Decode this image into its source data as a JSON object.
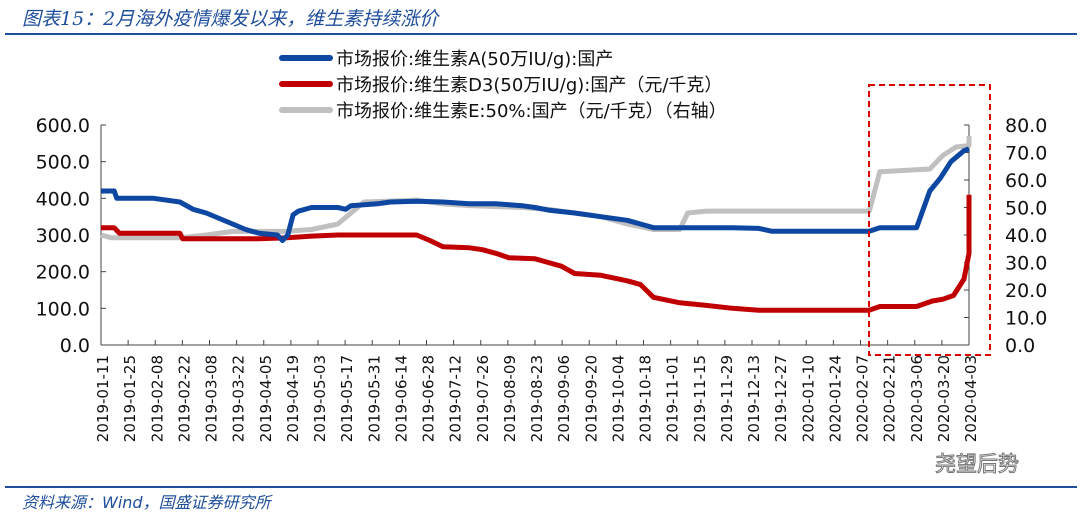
{
  "title": "图表15：2月海外疫情爆发以来，维生素持续涨价",
  "footer": "资料来源：Wind，国盛证券研究所",
  "watermark": "尧望后势",
  "chart_data": {
    "type": "line",
    "title": "图表15：2月海外疫情爆发以来，维生素持续涨价",
    "x_ticks": [
      "2019-01-11",
      "2019-01-25",
      "2019-02-08",
      "2019-02-22",
      "2019-03-08",
      "2019-03-22",
      "2019-04-05",
      "2019-04-19",
      "2019-05-03",
      "2019-05-17",
      "2019-05-31",
      "2019-06-14",
      "2019-06-28",
      "2019-07-12",
      "2019-07-26",
      "2019-08-09",
      "2019-08-23",
      "2019-09-06",
      "2019-09-20",
      "2019-10-04",
      "2019-10-18",
      "2019-11-01",
      "2019-11-15",
      "2019-11-29",
      "2019-12-13",
      "2019-12-27",
      "2020-01-10",
      "2020-01-24",
      "2020-02-07",
      "2020-02-21",
      "2020-03-06",
      "2020-03-20",
      "2020-04-03"
    ],
    "x_unit": "biweekly tick index (0 = 2019-01-11)",
    "y_left": {
      "range": [
        0,
        600
      ],
      "ticks": [
        "0.0",
        "100.0",
        "200.0",
        "300.0",
        "400.0",
        "500.0",
        "600.0"
      ]
    },
    "y_right": {
      "range": [
        0,
        80
      ],
      "ticks": [
        "0.0",
        "10.0",
        "20.0",
        "30.0",
        "40.0",
        "50.0",
        "60.0",
        "70.0",
        "80.0"
      ]
    },
    "legend_position": "top-center",
    "highlight_box": {
      "x_from": "2020-02-07",
      "x_to": "2020-04-03"
    },
    "series": [
      {
        "name": "市场报价:维生素A(50万IU/g):国产",
        "color": "#0d47a1",
        "axis": "left",
        "points": [
          [
            0,
            420
          ],
          [
            0.5,
            420
          ],
          [
            0.6,
            400
          ],
          [
            2,
            400
          ],
          [
            3,
            390
          ],
          [
            3.5,
            370
          ],
          [
            4,
            360
          ],
          [
            4.5,
            345
          ],
          [
            5,
            330
          ],
          [
            5.5,
            315
          ],
          [
            6,
            305
          ],
          [
            6.7,
            300
          ],
          [
            6.9,
            285
          ],
          [
            7.1,
            300
          ],
          [
            7.3,
            355
          ],
          [
            7.5,
            365
          ],
          [
            8,
            375
          ],
          [
            9,
            375
          ],
          [
            9.3,
            370
          ],
          [
            9.5,
            380
          ],
          [
            10.5,
            385
          ],
          [
            11,
            390
          ],
          [
            12,
            392
          ],
          [
            13,
            390
          ],
          [
            14,
            385
          ],
          [
            15,
            385
          ],
          [
            16,
            380
          ],
          [
            16.5,
            375
          ],
          [
            17,
            368
          ],
          [
            18,
            360
          ],
          [
            19,
            350
          ],
          [
            20,
            340
          ],
          [
            20.5,
            330
          ],
          [
            21,
            320
          ],
          [
            24,
            320
          ],
          [
            25,
            318
          ],
          [
            25.5,
            310
          ],
          [
            29.2,
            310
          ],
          [
            29.6,
            320
          ],
          [
            31,
            320
          ],
          [
            31.5,
            420
          ],
          [
            31.9,
            455
          ],
          [
            32.3,
            500
          ],
          [
            32.8,
            530
          ],
          [
            33.3,
            535
          ]
        ]
      },
      {
        "name": "市场报价:维生素D3(50万IU/g):国产（元/千克）",
        "color": "#c00000",
        "axis": "left",
        "points": [
          [
            0,
            320
          ],
          [
            0.5,
            320
          ],
          [
            0.7,
            305
          ],
          [
            3,
            305
          ],
          [
            3.1,
            290
          ],
          [
            4,
            290
          ],
          [
            5,
            290
          ],
          [
            6,
            290
          ],
          [
            7,
            292
          ],
          [
            8,
            297
          ],
          [
            9,
            300
          ],
          [
            12,
            300
          ],
          [
            12.5,
            285
          ],
          [
            13,
            268
          ],
          [
            14,
            265
          ],
          [
            14.5,
            260
          ],
          [
            15,
            250
          ],
          [
            15.5,
            238
          ],
          [
            16.5,
            235
          ],
          [
            17,
            225
          ],
          [
            17.5,
            215
          ],
          [
            18,
            195
          ],
          [
            19,
            190
          ],
          [
            20,
            175
          ],
          [
            20.5,
            165
          ],
          [
            21,
            130
          ],
          [
            22,
            115
          ],
          [
            23,
            108
          ],
          [
            24,
            100
          ],
          [
            25,
            95
          ],
          [
            29.2,
            95
          ],
          [
            29.6,
            105
          ],
          [
            31,
            105
          ],
          [
            31.6,
            120
          ],
          [
            32,
            125
          ],
          [
            32.4,
            135
          ],
          [
            32.8,
            180
          ],
          [
            33.0,
            250
          ],
          [
            33.1,
            280
          ],
          [
            33.2,
            395
          ],
          [
            33.4,
            410
          ]
        ]
      },
      {
        "name": "市场报价:维生素E:50%:国产（元/千克）（右轴）",
        "color": "#c0c0c0",
        "axis": "right",
        "points": [
          [
            0,
            40
          ],
          [
            0.4,
            39
          ],
          [
            3,
            39
          ],
          [
            4,
            40
          ],
          [
            5,
            41.3
          ],
          [
            7,
            41.3
          ],
          [
            8,
            42
          ],
          [
            9,
            44
          ],
          [
            9.5,
            48
          ],
          [
            10,
            52
          ],
          [
            12,
            52.7
          ],
          [
            13,
            51.3
          ],
          [
            14,
            50.7
          ],
          [
            16,
            50
          ],
          [
            17,
            49.3
          ],
          [
            18,
            48
          ],
          [
            19,
            46.7
          ],
          [
            20,
            44
          ],
          [
            21,
            42
          ],
          [
            22,
            42
          ],
          [
            22.3,
            48
          ],
          [
            23,
            48.7
          ],
          [
            29.2,
            48.7
          ],
          [
            29.6,
            63
          ],
          [
            31.5,
            64
          ],
          [
            32,
            69
          ],
          [
            32.5,
            72
          ],
          [
            33.2,
            72.5
          ],
          [
            33.4,
            76
          ]
        ]
      }
    ]
  }
}
